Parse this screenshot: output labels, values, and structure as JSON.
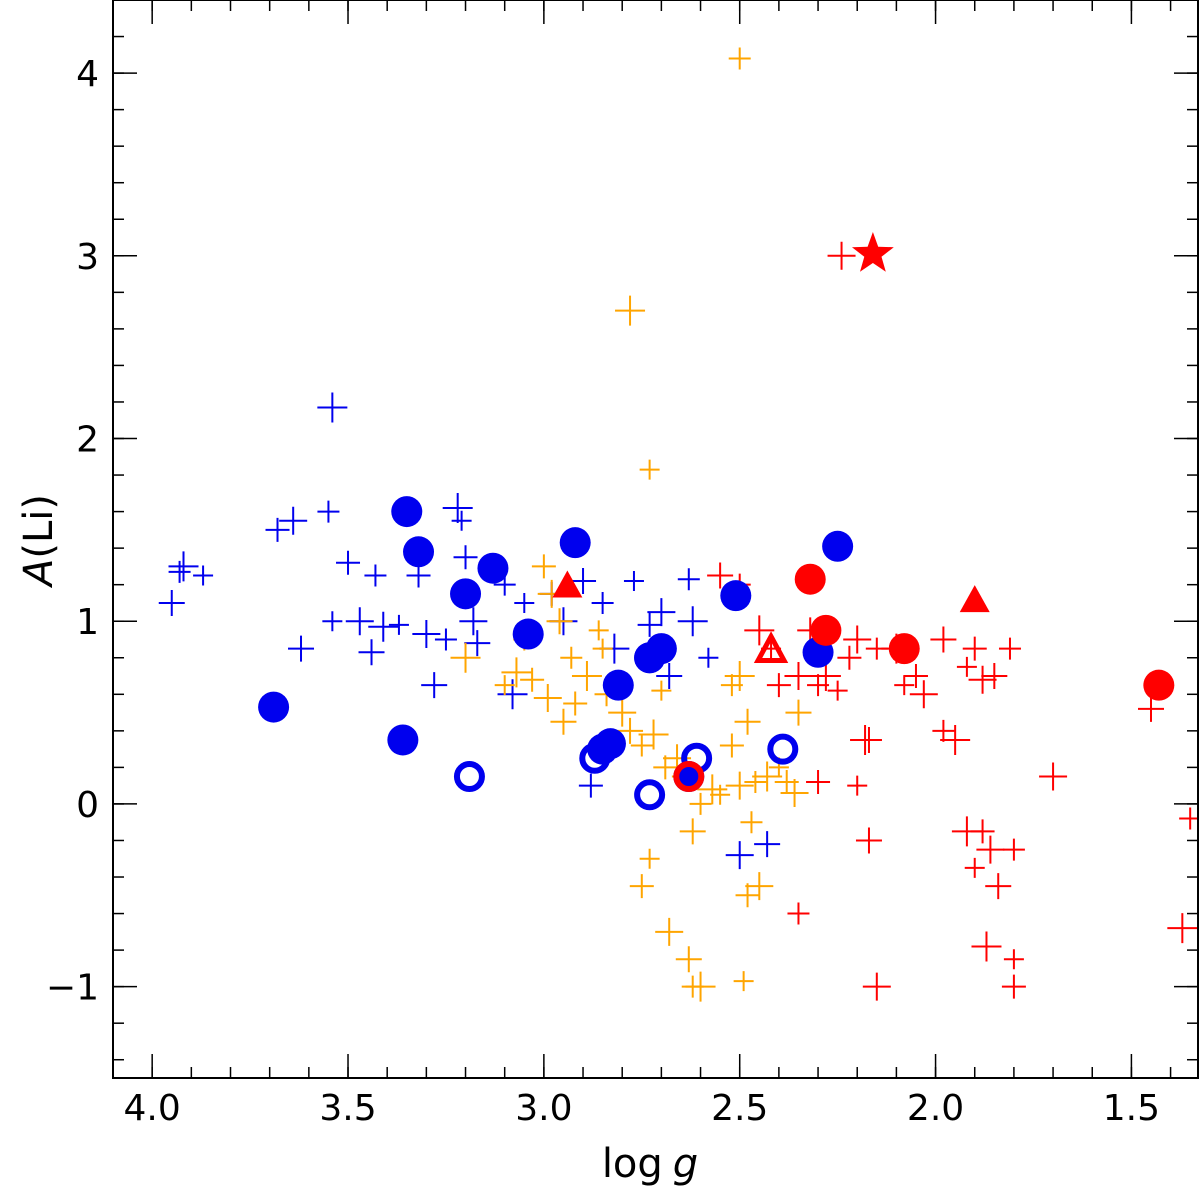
{
  "chart_data": {
    "type": "scatter",
    "xlabel_main": "log",
    "xlabel_var": "g",
    "ylabel_var": "A",
    "ylabel_main": "(Li)",
    "xlim": [
      4.1,
      1.33
    ],
    "ylim": [
      -1.5,
      4.4
    ],
    "x_reversed": true,
    "grid": false,
    "x_ticks": [
      {
        "value": 4.0,
        "label": "4.0"
      },
      {
        "value": 3.5,
        "label": "3.5"
      },
      {
        "value": 3.0,
        "label": "3.0"
      },
      {
        "value": 2.5,
        "label": "2.5"
      },
      {
        "value": 2.0,
        "label": "2.0"
      },
      {
        "value": 1.5,
        "label": "1.5"
      }
    ],
    "x_minor_step": 0.1,
    "y_ticks": [
      {
        "value": -1,
        "label": "−1"
      },
      {
        "value": 0,
        "label": "0"
      },
      {
        "value": 1,
        "label": "1"
      },
      {
        "value": 2,
        "label": "2"
      },
      {
        "value": 3,
        "label": "3"
      },
      {
        "value": 4,
        "label": "4"
      }
    ],
    "y_minor_step": 0.2,
    "colors": {
      "blue": "#0000ee",
      "orange": "#ffa500",
      "red": "#ff0000"
    },
    "series": [
      {
        "marker": "plus",
        "color": "#0000ee",
        "points": [
          [
            3.95,
            1.1
          ],
          [
            3.93,
            1.27
          ],
          [
            3.92,
            1.3
          ],
          [
            3.87,
            1.25
          ],
          [
            3.68,
            1.5
          ],
          [
            3.64,
            1.55
          ],
          [
            3.62,
            0.85
          ],
          [
            3.55,
            1.6
          ],
          [
            3.54,
            2.17
          ],
          [
            3.54,
            1.0
          ],
          [
            3.5,
            1.32
          ],
          [
            3.47,
            1.0
          ],
          [
            3.44,
            0.83
          ],
          [
            3.43,
            1.25
          ],
          [
            3.41,
            0.97
          ],
          [
            3.37,
            0.98
          ],
          [
            3.32,
            1.25
          ],
          [
            3.3,
            0.93
          ],
          [
            3.28,
            0.65
          ],
          [
            3.25,
            0.9
          ],
          [
            3.22,
            1.62
          ],
          [
            3.21,
            1.55
          ],
          [
            3.2,
            1.35
          ],
          [
            3.18,
            1.0
          ],
          [
            3.17,
            0.88
          ],
          [
            3.1,
            1.2
          ],
          [
            3.08,
            0.6
          ],
          [
            3.05,
            1.1
          ],
          [
            2.98,
            1.15
          ],
          [
            2.95,
            1.0
          ],
          [
            2.9,
            1.22
          ],
          [
            2.85,
            1.1
          ],
          [
            2.82,
            0.85
          ],
          [
            2.77,
            1.22
          ],
          [
            2.73,
            0.98
          ],
          [
            2.7,
            1.05
          ],
          [
            2.68,
            0.7
          ],
          [
            2.63,
            1.23
          ],
          [
            2.62,
            1.0
          ],
          [
            2.58,
            0.8
          ],
          [
            2.88,
            0.1
          ],
          [
            2.5,
            -0.28
          ],
          [
            2.43,
            -0.22
          ]
        ]
      },
      {
        "marker": "plus",
        "color": "#ffa500",
        "points": [
          [
            2.5,
            4.08
          ],
          [
            2.78,
            2.7
          ],
          [
            2.73,
            1.83
          ],
          [
            3.0,
            1.3
          ],
          [
            2.98,
            1.15
          ],
          [
            2.96,
            1.0
          ],
          [
            3.05,
            0.9
          ],
          [
            3.07,
            0.72
          ],
          [
            3.1,
            0.65
          ],
          [
            3.03,
            0.68
          ],
          [
            2.99,
            0.58
          ],
          [
            2.95,
            0.45
          ],
          [
            2.93,
            0.8
          ],
          [
            2.89,
            0.7
          ],
          [
            2.86,
            0.95
          ],
          [
            2.84,
            0.6
          ],
          [
            2.8,
            0.5
          ],
          [
            2.78,
            0.4
          ],
          [
            2.75,
            0.32
          ],
          [
            2.72,
            0.38
          ],
          [
            2.7,
            0.62
          ],
          [
            2.69,
            0.2
          ],
          [
            2.66,
            0.25
          ],
          [
            2.64,
            0.15
          ],
          [
            2.6,
            0.0
          ],
          [
            2.57,
            0.08
          ],
          [
            2.55,
            0.05
          ],
          [
            2.52,
            0.32
          ],
          [
            2.5,
            0.1
          ],
          [
            2.48,
            0.45
          ],
          [
            2.46,
            0.12
          ],
          [
            2.43,
            0.15
          ],
          [
            2.4,
            0.2
          ],
          [
            2.38,
            0.12
          ],
          [
            2.36,
            0.06
          ],
          [
            2.35,
            0.5
          ],
          [
            2.52,
            0.65
          ],
          [
            2.5,
            0.7
          ],
          [
            2.73,
            -0.3
          ],
          [
            2.75,
            -0.45
          ],
          [
            2.68,
            -0.7
          ],
          [
            2.63,
            -0.85
          ],
          [
            2.62,
            -1.0
          ],
          [
            2.6,
            -1.0
          ],
          [
            2.49,
            -0.97
          ],
          [
            2.48,
            -0.5
          ],
          [
            2.45,
            -0.45
          ],
          [
            2.62,
            -0.15
          ],
          [
            2.47,
            -0.1
          ],
          [
            3.2,
            0.8
          ],
          [
            2.85,
            0.85
          ],
          [
            2.92,
            0.55
          ]
        ]
      },
      {
        "marker": "plus",
        "color": "#ff0000",
        "points": [
          [
            2.24,
            3.0
          ],
          [
            2.55,
            1.25
          ],
          [
            2.5,
            1.2
          ],
          [
            2.45,
            0.95
          ],
          [
            2.42,
            0.85
          ],
          [
            2.4,
            0.65
          ],
          [
            2.35,
            0.7
          ],
          [
            2.32,
            0.95
          ],
          [
            2.3,
            0.65
          ],
          [
            2.28,
            0.7
          ],
          [
            2.25,
            0.62
          ],
          [
            2.22,
            0.8
          ],
          [
            2.2,
            0.9
          ],
          [
            2.17,
            0.35
          ],
          [
            2.15,
            0.85
          ],
          [
            2.1,
            0.85
          ],
          [
            2.08,
            0.65
          ],
          [
            2.05,
            0.7
          ],
          [
            2.03,
            0.6
          ],
          [
            1.98,
            0.9
          ],
          [
            1.98,
            0.4
          ],
          [
            1.95,
            0.35
          ],
          [
            1.92,
            0.75
          ],
          [
            1.9,
            0.85
          ],
          [
            1.88,
            0.68
          ],
          [
            1.85,
            0.7
          ],
          [
            1.81,
            0.85
          ],
          [
            1.92,
            -0.15
          ],
          [
            1.9,
            -0.35
          ],
          [
            1.88,
            -0.15
          ],
          [
            1.86,
            -0.25
          ],
          [
            1.84,
            -0.45
          ],
          [
            1.8,
            -0.25
          ],
          [
            1.87,
            -0.78
          ],
          [
            1.8,
            -0.85
          ],
          [
            1.8,
            -1.0
          ],
          [
            2.15,
            -1.0
          ],
          [
            2.17,
            -0.2
          ],
          [
            2.35,
            -0.6
          ],
          [
            2.18,
            0.35
          ],
          [
            2.2,
            0.1
          ],
          [
            2.3,
            0.12
          ],
          [
            1.7,
            0.15
          ],
          [
            1.45,
            0.52
          ],
          [
            1.35,
            -0.08
          ],
          [
            1.37,
            -0.68
          ]
        ]
      },
      {
        "marker": "filled-circle",
        "color": "#0000ee",
        "points": [
          [
            3.69,
            0.53
          ],
          [
            3.36,
            0.35
          ],
          [
            3.35,
            1.6
          ],
          [
            3.32,
            1.38
          ],
          [
            3.2,
            1.15
          ],
          [
            3.13,
            1.29
          ],
          [
            3.04,
            0.93
          ],
          [
            2.92,
            1.43
          ],
          [
            2.85,
            0.3
          ],
          [
            2.83,
            0.33
          ],
          [
            2.81,
            0.65
          ],
          [
            2.73,
            0.8
          ],
          [
            2.7,
            0.85
          ],
          [
            2.63,
            0.15
          ],
          [
            2.51,
            1.14
          ],
          [
            2.3,
            0.83
          ],
          [
            2.25,
            1.41
          ]
        ]
      },
      {
        "marker": "open-circle",
        "color": "#0000ee",
        "points": [
          [
            3.19,
            0.15
          ],
          [
            2.87,
            0.25
          ],
          [
            2.73,
            0.05
          ],
          [
            2.61,
            0.25
          ],
          [
            2.39,
            0.3
          ],
          [
            2.73,
            0.8
          ]
        ]
      },
      {
        "marker": "filled-circle",
        "color": "#ff0000",
        "points": [
          [
            2.32,
            1.23
          ],
          [
            2.28,
            0.95
          ],
          [
            2.08,
            0.85
          ],
          [
            1.43,
            0.65
          ]
        ]
      },
      {
        "marker": "open-circle",
        "color": "#ff0000",
        "points": [
          [
            2.63,
            0.15
          ]
        ]
      },
      {
        "marker": "filled-triangle",
        "color": "#ff0000",
        "points": [
          [
            2.94,
            1.19
          ],
          [
            1.9,
            1.11
          ]
        ]
      },
      {
        "marker": "open-triangle",
        "color": "#ff0000",
        "points": [
          [
            2.42,
            0.84
          ]
        ]
      },
      {
        "marker": "star",
        "color": "#ff0000",
        "points": [
          [
            2.16,
            3.01
          ]
        ]
      }
    ]
  }
}
